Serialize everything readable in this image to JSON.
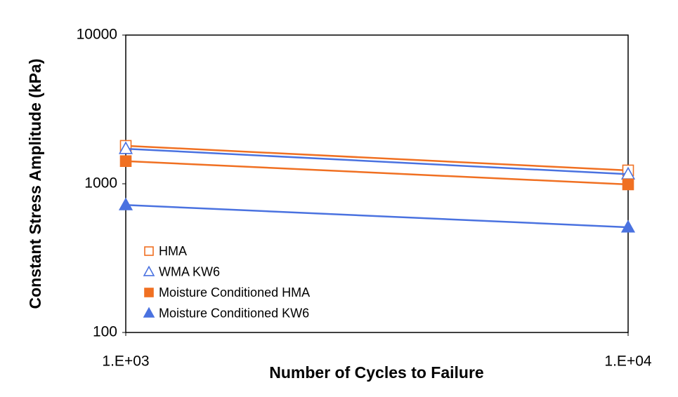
{
  "chart_data": {
    "type": "scatter",
    "x_label": "Number of Cycles to Failure",
    "y_label": "Constant Stress Amplitude (kPa)",
    "x": [
      1000,
      10000
    ],
    "xscale": "log",
    "yscale": "log",
    "xlim": [
      1000,
      10000
    ],
    "ylim": [
      100,
      10000
    ],
    "xticks": [
      {
        "value": 1000,
        "label": "1.E+03"
      },
      {
        "value": 10000,
        "label": "1.E+04"
      }
    ],
    "yticks": [
      100,
      1000,
      10000
    ],
    "grid": false,
    "trendline": true,
    "legend": "lower left",
    "series": [
      {
        "name": "HMA",
        "color": "#f07022",
        "marker": "square",
        "filled": false,
        "values": [
          1800,
          1230
        ]
      },
      {
        "name": "WMA KW6",
        "color": "#4a72e0",
        "marker": "triangle",
        "filled": false,
        "values": [
          1720,
          1160
        ]
      },
      {
        "name": "Moisture Conditioned HMA",
        "color": "#f07022",
        "marker": "square",
        "filled": true,
        "values": [
          1420,
          990
        ]
      },
      {
        "name": "Moisture Conditioned KW6",
        "color": "#4a72e0",
        "marker": "triangle",
        "filled": true,
        "values": [
          720,
          510
        ]
      }
    ]
  }
}
